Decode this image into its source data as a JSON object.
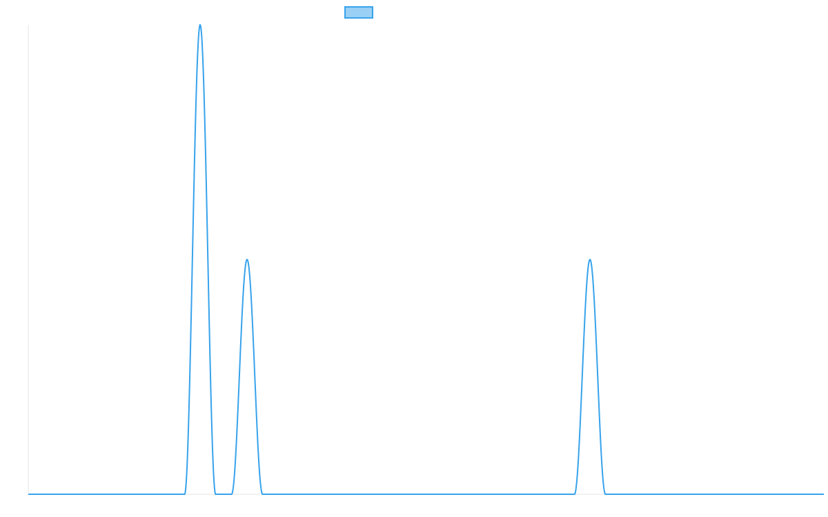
{
  "chart_data": {
    "type": "line",
    "title": "",
    "xlabel": "",
    "ylabel": "",
    "grid": false,
    "legend_position": "top-center",
    "colors": {
      "line": "#36a2eb",
      "legend_fill": "#9ad0f5",
      "axis": "#e5e5e5"
    },
    "xlim": [
      0,
      1
    ],
    "ylim": [
      0,
      1
    ],
    "baseline": 0,
    "peaks": [
      {
        "center": 0.216,
        "height": 1.0,
        "half_width": 0.0195
      },
      {
        "center": 0.275,
        "height": 0.5,
        "half_width": 0.0195
      },
      {
        "center": 0.706,
        "height": 0.5,
        "half_width": 0.0195
      }
    ],
    "series": [
      {
        "color": "#36a2eb"
      }
    ]
  }
}
